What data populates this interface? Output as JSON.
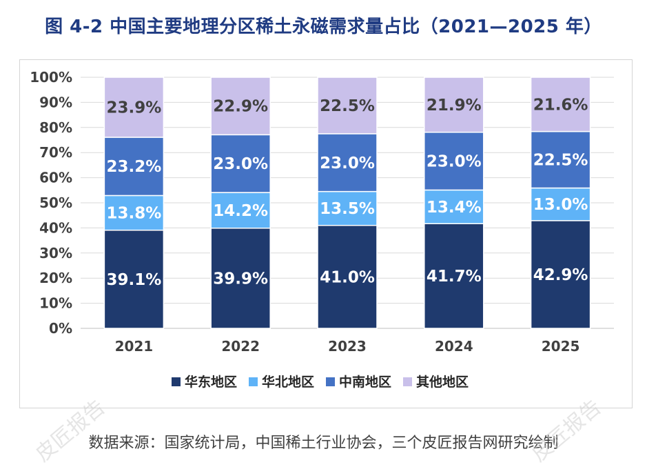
{
  "title": "图  4-2  中国主要地理分区稀土永磁需求量占比（2021—2025 年）",
  "source": "数据来源：国家统计局，中国稀土行业协会，三个皮匠报告网研究绘制",
  "watermark": "皮匠报告",
  "colors": {
    "华东地区": "#1f3a6e",
    "华北地区": "#5fb3f7",
    "中南地区": "#4472c4",
    "其他地区": "#c9c0ea"
  },
  "chart_data": {
    "type": "bar",
    "stacked": true,
    "title": "图  4-2  中国主要地理分区稀土永磁需求量占比（2021—2025 年）",
    "categories": [
      "2021",
      "2022",
      "2023",
      "2024",
      "2025"
    ],
    "series": [
      {
        "name": "华东地区",
        "values": [
          39.1,
          39.9,
          41.0,
          41.7,
          42.9
        ],
        "labels": [
          "39.1%",
          "39.9%",
          "41.0%",
          "41.7%",
          "42.9%"
        ]
      },
      {
        "name": "华北地区",
        "values": [
          13.8,
          14.2,
          13.5,
          13.4,
          13.0
        ],
        "labels": [
          "13.8%",
          "14.2%",
          "13.5%",
          "13.4%",
          "13.0%"
        ]
      },
      {
        "name": "中南地区",
        "values": [
          23.2,
          23.0,
          23.0,
          23.0,
          22.5
        ],
        "labels": [
          "23.2%",
          "23.0%",
          "23.0%",
          "23.0%",
          "22.5%"
        ]
      },
      {
        "name": "其他地区",
        "values": [
          23.9,
          22.9,
          22.5,
          21.9,
          21.6
        ],
        "labels": [
          "23.9%",
          "22.9%",
          "22.5%",
          "21.9%",
          "21.6%"
        ]
      }
    ],
    "ylim": [
      0,
      100
    ],
    "yticks": [
      "0%",
      "10%",
      "20%",
      "30%",
      "40%",
      "50%",
      "60%",
      "70%",
      "80%",
      "90%",
      "100%"
    ],
    "xlabel": "",
    "ylabel": "",
    "grid": true,
    "legend": "bottom"
  }
}
